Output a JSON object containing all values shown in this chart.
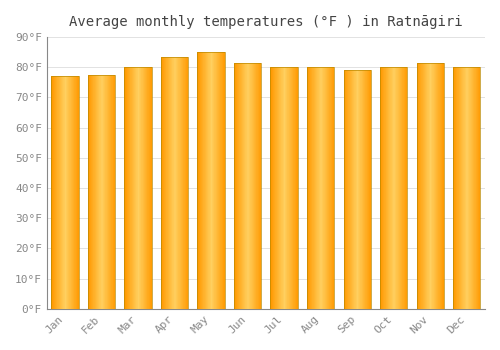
{
  "title": "Average monthly temperatures (°F ) in Ratnāgiri",
  "months": [
    "Jan",
    "Feb",
    "Mar",
    "Apr",
    "May",
    "Jun",
    "Jul",
    "Aug",
    "Sep",
    "Oct",
    "Nov",
    "Dec"
  ],
  "values": [
    77,
    77.5,
    80,
    83.5,
    85,
    81.5,
    80,
    80,
    79,
    80,
    81.5,
    80
  ],
  "bar_color_main": "#FFAA00",
  "bar_color_light": "#FFD050",
  "bar_edge_color": "#CC8800",
  "background_color": "#FFFFFF",
  "grid_color": "#DDDDDD",
  "ylim": [
    0,
    90
  ],
  "yticks": [
    0,
    10,
    20,
    30,
    40,
    50,
    60,
    70,
    80,
    90
  ],
  "ytick_labels": [
    "0°F",
    "10°F",
    "20°F",
    "30°F",
    "40°F",
    "50°F",
    "60°F",
    "70°F",
    "80°F",
    "90°F"
  ],
  "title_fontsize": 10,
  "tick_fontsize": 8,
  "font_family": "monospace"
}
